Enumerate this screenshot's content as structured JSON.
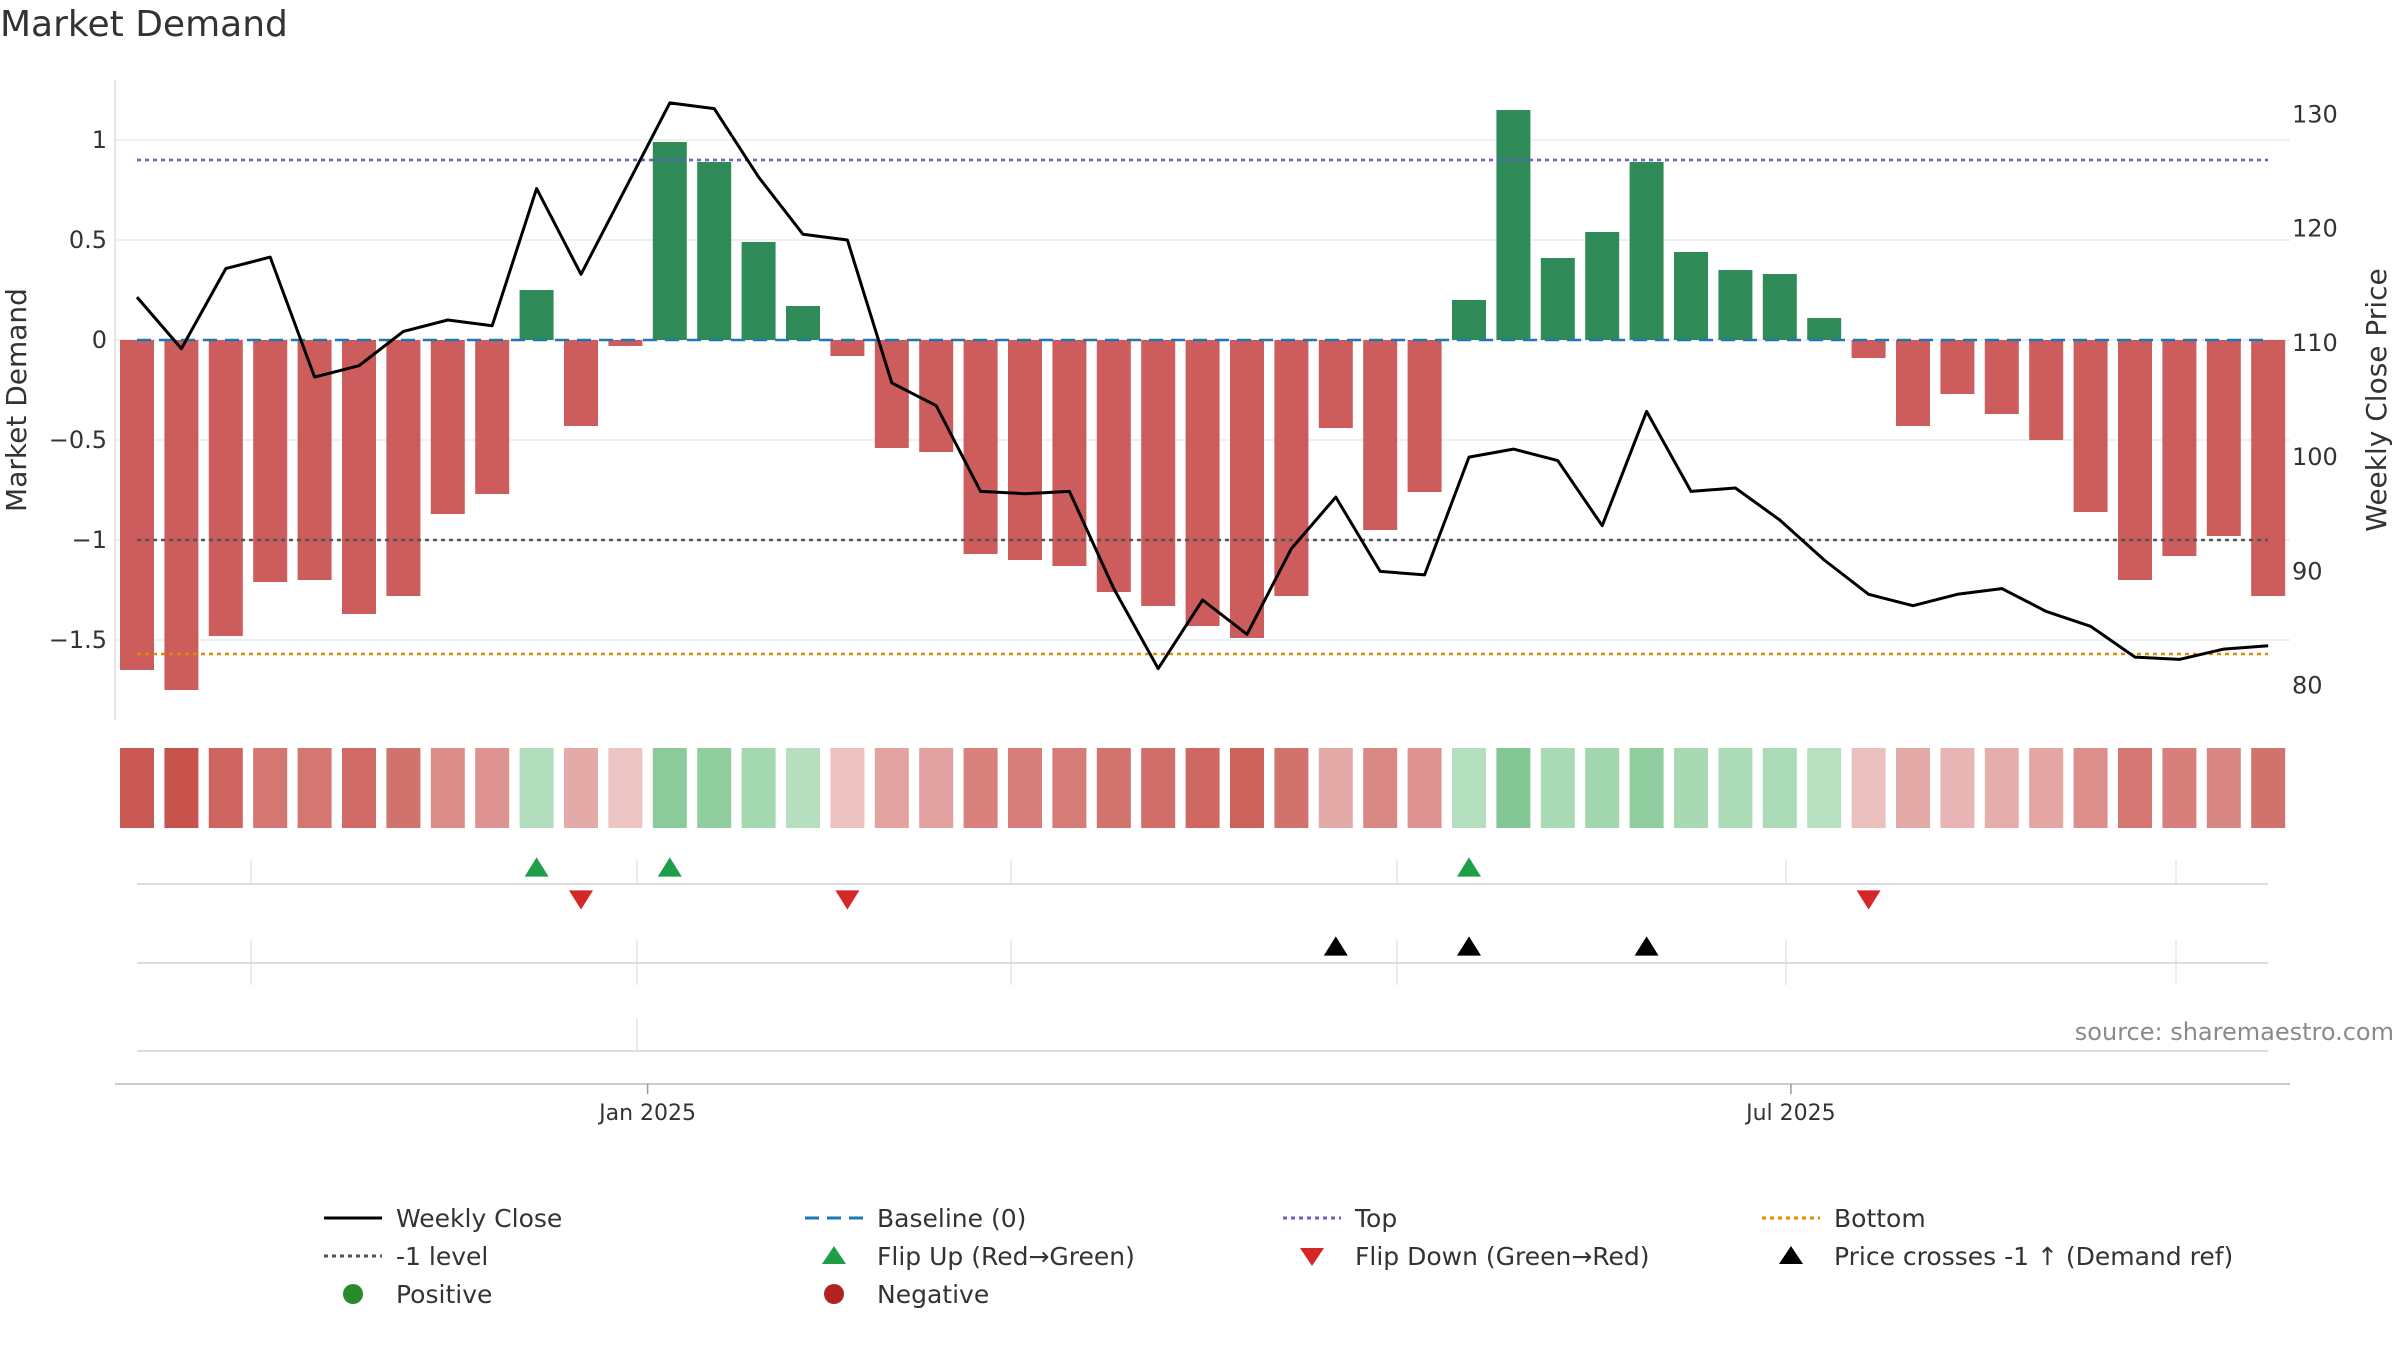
{
  "title": "Market Demand",
  "source": "source: sharemaestro.com",
  "colors": {
    "positive_bar": "#2e8b57",
    "negative_bar": "#cd5c5c",
    "close_line": "#000000",
    "baseline": "#1f77b4",
    "top": "#6a5acd",
    "bottom": "#e08a00",
    "minus1": "#555555",
    "flip_up": "#1e9e48",
    "flip_down": "#d62728",
    "cross": "#000000",
    "positive_dot": "#2a8a2a",
    "negative_dot": "#b22222",
    "heat_pos_strong": "#6fbf80",
    "heat_neg_strong": "#c8524c"
  },
  "legend": [
    {
      "key": "close",
      "label": "Weekly Close",
      "symbol": "solid-line"
    },
    {
      "key": "baseline",
      "label": "Baseline (0)",
      "symbol": "dashed-line"
    },
    {
      "key": "top",
      "label": "Top",
      "symbol": "dotted-line"
    },
    {
      "key": "bottom",
      "label": "Bottom",
      "symbol": "dotted-line"
    },
    {
      "key": "minus1",
      "label": "-1 level",
      "symbol": "dotted-line"
    },
    {
      "key": "flip_up",
      "label": "Flip Up (Red→Green)",
      "symbol": "triangle-up"
    },
    {
      "key": "flip_down",
      "label": "Flip Down (Green→Red)",
      "symbol": "triangle-down"
    },
    {
      "key": "cross",
      "label": "Price crosses -1 ↑ (Demand ref)",
      "symbol": "triangle-up"
    },
    {
      "key": "positive_dot",
      "label": "Positive",
      "symbol": "dot"
    },
    {
      "key": "negative_dot",
      "label": "Negative",
      "symbol": "dot"
    }
  ],
  "chart_data": {
    "type": "bar",
    "title": "Market Demand",
    "ylabel": "Market Demand",
    "y2label": "Weekly Close Price",
    "ylim": [
      -1.9,
      1.3
    ],
    "y2lim": [
      77,
      133
    ],
    "yticks": [
      1,
      0.5,
      0,
      -0.5,
      -1,
      -1.5
    ],
    "ytick_labels": [
      "1",
      "0.5",
      "0",
      "−0.5",
      "−1",
      "−1.5"
    ],
    "y2ticks": [
      130,
      120,
      110,
      100,
      90,
      80
    ],
    "xtick_labels": [
      {
        "label": "Jan 2025",
        "index": 11.5
      },
      {
        "label": "Jul 2025",
        "index": 37.25
      }
    ],
    "reference_lines": {
      "baseline": 0,
      "top": 0.9,
      "bottom": -1.57,
      "minus1": -1
    },
    "series": [
      {
        "name": "Market Demand",
        "values": [
          -1.65,
          -1.75,
          -1.48,
          -1.21,
          -1.2,
          -1.37,
          -1.28,
          -0.87,
          -0.77,
          0.25,
          -0.43,
          -0.03,
          0.99,
          0.89,
          0.49,
          0.17,
          -0.08,
          -0.54,
          -0.56,
          -1.07,
          -1.1,
          -1.13,
          -1.26,
          -1.33,
          -1.43,
          -1.49,
          -1.28,
          -0.44,
          -0.95,
          -0.76,
          0.2,
          1.15,
          0.41,
          0.54,
          0.89,
          0.44,
          0.35,
          0.33,
          0.11,
          -0.09,
          -0.43,
          -0.27,
          -0.37,
          -0.5,
          -0.86,
          -1.2,
          -1.08,
          -0.98,
          -1.28
        ]
      },
      {
        "name": "Weekly Close",
        "values": [
          114,
          109.5,
          116.5,
          117.5,
          107,
          108,
          111,
          112,
          111.5,
          123.5,
          116,
          123.5,
          131,
          130.5,
          124.5,
          119.5,
          119,
          106.5,
          104.5,
          97,
          96.8,
          97,
          88.5,
          81.5,
          87.5,
          84.5,
          92,
          96.5,
          90,
          89.7,
          100,
          100.7,
          99.7,
          94,
          104,
          97,
          97.3,
          94.5,
          91,
          88,
          87,
          88,
          88.5,
          86.5,
          85.2,
          82.5,
          82.3,
          83.2,
          83.5
        ]
      }
    ],
    "flip_up": [
      9,
      12,
      30
    ],
    "flip_down": [
      10,
      16,
      39
    ],
    "price_crosses": [
      27,
      30,
      34
    ]
  }
}
